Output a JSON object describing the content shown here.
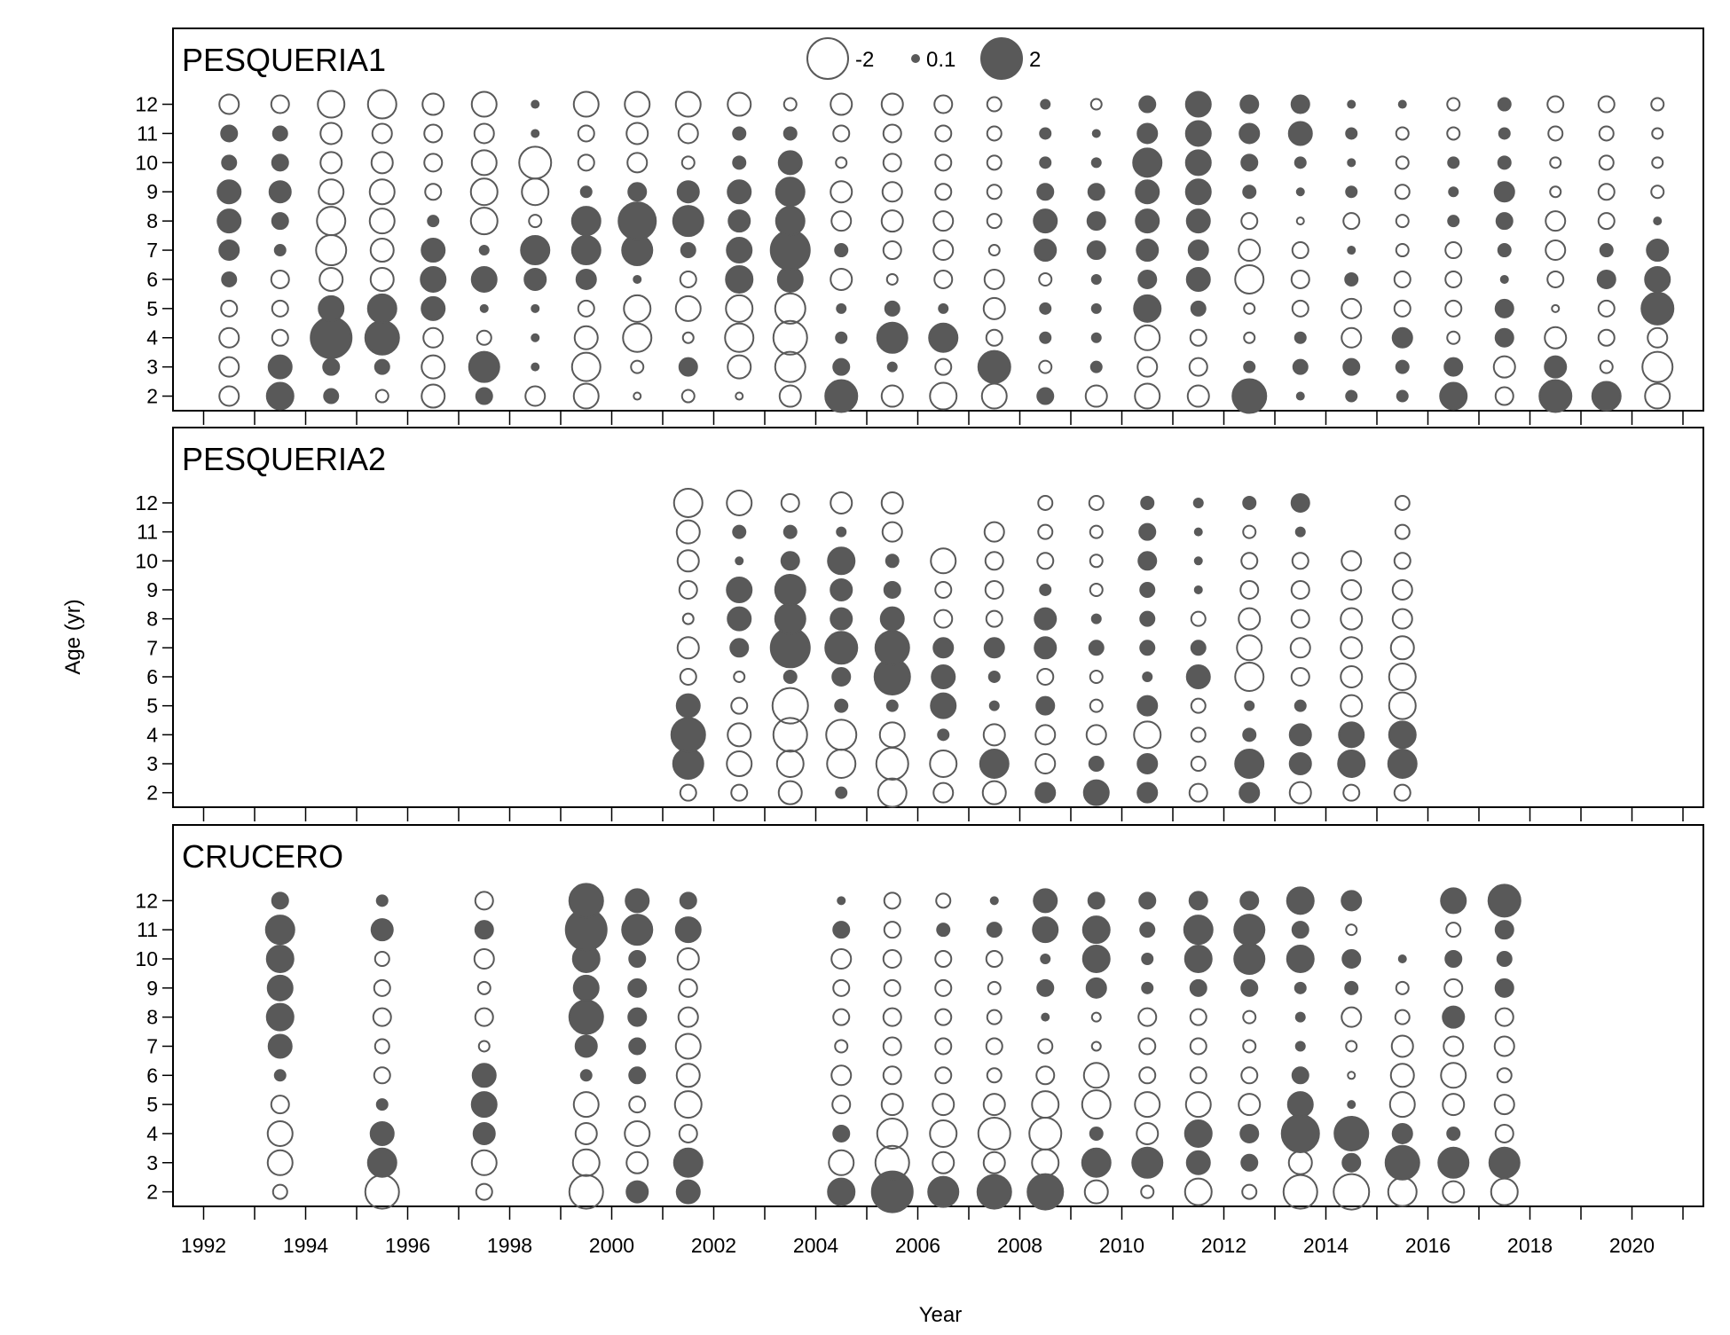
{
  "chart_data": {
    "type": "scatter",
    "subtype": "bubble",
    "xlabel": "Year",
    "ylabel": "Age (yr)",
    "x_ticks": [
      1992,
      1994,
      1996,
      1998,
      2000,
      2002,
      2004,
      2006,
      2008,
      2010,
      2012,
      2014,
      2016,
      2018,
      2020
    ],
    "xlim": [
      1991.4,
      2021.4
    ],
    "y_ticks": [
      2,
      3,
      4,
      5,
      6,
      7,
      8,
      9,
      10,
      11,
      12
    ],
    "ylim": [
      1.5,
      14.6
    ],
    "colors": {
      "positive": "#595959",
      "negative_stroke": "#595959",
      "frame": "#000000"
    },
    "legend": {
      "placement": "top-center",
      "entries": [
        {
          "label": "-2",
          "value": -2
        },
        {
          "label": "0.1",
          "value": 0.1
        },
        {
          "label": "2",
          "value": 2
        }
      ]
    },
    "panels": [
      {
        "name": "PESQUERIA1",
        "years": [
          1993,
          1994,
          1995,
          1996,
          1997,
          1998,
          1999,
          2000,
          2001,
          2002,
          2003,
          2004,
          2005,
          2006,
          2007,
          2008,
          2009,
          2010,
          2011,
          2012,
          2013,
          2014,
          2015,
          2016,
          2017,
          2018,
          2019,
          2020,
          2021
        ],
        "ages": [
          2,
          3,
          4,
          5,
          6,
          7,
          8,
          9,
          10,
          11,
          12
        ],
        "residuals": [
          [
            -0.8,
            -0.8,
            -0.8,
            -0.6,
            0.5,
            0.8,
            1.0,
            1.0,
            0.5,
            0.6,
            -0.8
          ],
          [
            1.2,
            1.0,
            -0.6,
            -0.6,
            -0.7,
            0.3,
            0.6,
            0.9,
            0.6,
            0.5,
            -0.7
          ],
          [
            0.5,
            0.6,
            2.0,
            1.1,
            -1.0,
            -1.4,
            -1.3,
            -1.1,
            -0.9,
            -0.9,
            -1.2
          ],
          [
            -0.4,
            0.5,
            1.6,
            1.3,
            -1.0,
            -1.0,
            -1.1,
            -1.1,
            -0.9,
            -0.8,
            -1.3
          ],
          [
            -1.0,
            -1.0,
            -0.8,
            1.0,
            1.1,
            1.0,
            0.3,
            -0.6,
            -0.7,
            -0.7,
            -0.9
          ],
          [
            0.6,
            1.4,
            -0.5,
            0.1,
            1.1,
            0.2,
            -1.2,
            -1.2,
            -1.1,
            -0.8,
            -1.1
          ],
          [
            -0.8,
            0.1,
            0.1,
            0.1,
            0.9,
            1.3,
            -0.4,
            -1.2,
            -1.5,
            0.1,
            0.1
          ],
          [
            -1.1,
            -1.3,
            -1.0,
            -0.6,
            0.8,
            1.3,
            1.3,
            0.3,
            -0.6,
            -0.6,
            -1.1
          ],
          [
            -0.1,
            -0.4,
            -1.3,
            -1.2,
            0.1,
            1.4,
            1.8,
            0.7,
            -0.8,
            -0.9,
            -1.1
          ],
          [
            -0.4,
            0.7,
            -0.3,
            -1.1,
            -0.6,
            0.5,
            1.4,
            0.9,
            -0.4,
            -0.8,
            -1.1
          ],
          [
            -0.1,
            -1.0,
            -1.3,
            -1.2,
            1.2,
            1.1,
            0.9,
            1.0,
            0.4,
            0.4,
            -1.0
          ],
          [
            -0.9,
            -1.4,
            -1.6,
            -1.4,
            1.1,
            1.9,
            1.3,
            1.3,
            1.0,
            0.4,
            -0.4
          ],
          [
            1.5,
            0.6,
            0.3,
            0.2,
            -0.9,
            0.4,
            -0.8,
            -0.9,
            -0.3,
            -0.6,
            -0.9
          ],
          [
            -0.9,
            0.2,
            1.4,
            0.5,
            -0.3,
            -0.7,
            -0.9,
            -0.8,
            -0.7,
            -0.7,
            -0.9
          ],
          [
            -1.2,
            -0.6,
            1.3,
            0.2,
            -0.7,
            -0.8,
            -0.8,
            -0.6,
            -0.6,
            -0.6,
            -0.7
          ],
          [
            -1.1,
            1.5,
            -0.6,
            -0.9,
            -0.8,
            -0.3,
            -0.5,
            -0.5,
            -0.5,
            -0.5,
            -0.5
          ],
          [
            0.6,
            -0.4,
            0.3,
            0.3,
            -0.4,
            0.9,
            1.0,
            0.6,
            0.3,
            0.3,
            0.2
          ],
          [
            -0.9,
            0.3,
            0.2,
            0.2,
            0.2,
            0.7,
            0.7,
            0.6,
            0.2,
            0.1,
            -0.3
          ],
          [
            -1.1,
            -0.8,
            -1.1,
            1.2,
            0.7,
            0.9,
            1.0,
            1.0,
            1.3,
            0.8,
            0.6
          ],
          [
            -0.9,
            -0.7,
            -0.6,
            0.5,
            1.0,
            0.8,
            1.0,
            1.1,
            1.1,
            1.1,
            1.1
          ],
          [
            1.6,
            0.3,
            -0.3,
            -0.3,
            -1.3,
            -0.9,
            -0.6,
            0.4,
            0.6,
            0.8,
            0.7
          ],
          [
            0.1,
            0.5,
            0.3,
            -0.6,
            -0.7,
            -0.6,
            -0.1,
            0.1,
            0.3,
            1.0,
            0.7
          ],
          [
            0.3,
            0.6,
            -0.8,
            -0.8,
            0.4,
            0.1,
            -0.6,
            0.3,
            0.1,
            0.3,
            0.1
          ],
          [
            0.3,
            0.4,
            0.8,
            -0.6,
            -0.6,
            -0.4,
            -0.4,
            -0.5,
            -0.4,
            -0.4,
            0.1
          ],
          [
            1.2,
            0.7,
            -0.4,
            -0.6,
            -0.6,
            -0.6,
            0.3,
            0.2,
            0.3,
            -0.4,
            -0.4
          ],
          [
            -0.7,
            -0.9,
            0.7,
            0.7,
            0.1,
            0.4,
            0.6,
            0.8,
            0.4,
            0.3,
            0.4
          ],
          [
            1.5,
            0.9,
            -0.9,
            -0.1,
            -0.6,
            -0.8,
            -0.8,
            -0.3,
            -0.3,
            -0.5,
            -0.6
          ],
          [
            1.3,
            -0.4,
            -0.6,
            -0.6,
            0.7,
            0.4,
            -0.6,
            -0.6,
            -0.5,
            -0.5,
            -0.6
          ],
          [
            -1.1,
            -1.4,
            -0.8,
            1.5,
            1.1,
            0.9,
            0.1,
            -0.4,
            -0.3,
            -0.3,
            -0.4
          ]
        ]
      },
      {
        "name": "PESQUERIA2",
        "years": [
          2002,
          2003,
          2004,
          2005,
          2006,
          2007,
          2008,
          2009,
          2010,
          2011,
          2012,
          2013,
          2014,
          2015,
          2016
        ],
        "ages": [
          2,
          3,
          4,
          5,
          6,
          7,
          8,
          9,
          10,
          11,
          12
        ],
        "residuals": [
          [
            -0.6,
            1.4,
            1.6,
            1.0,
            -0.6,
            -0.9,
            -0.3,
            -0.7,
            -0.9,
            -1.0,
            -1.3
          ],
          [
            -0.6,
            -1.1,
            -1.0,
            -0.6,
            -0.3,
            0.7,
            1.0,
            1.1,
            0.1,
            0.4,
            -1.1
          ],
          [
            -1.0,
            -1.2,
            -1.6,
            -1.7,
            0.4,
            1.9,
            1.4,
            1.4,
            0.7,
            0.4,
            -0.7
          ],
          [
            0.3,
            -1.3,
            -1.4,
            0.4,
            0.7,
            1.5,
            0.9,
            0.9,
            1.2,
            0.2,
            -0.9
          ],
          [
            -1.3,
            -1.5,
            -1.1,
            0.3,
            1.7,
            1.6,
            1.0,
            0.6,
            0.4,
            -0.8,
            -0.9
          ],
          [
            -0.8,
            -1.2,
            0.3,
            1.1,
            1.0,
            0.8,
            -0.7,
            -0.6,
            -1.1,
            null,
            null
          ],
          [
            -1.0,
            1.3,
            -0.9,
            0.2,
            0.3,
            0.8,
            -0.6,
            -0.7,
            -0.7,
            -0.8,
            null
          ],
          [
            0.8,
            -0.8,
            -0.8,
            0.7,
            -0.6,
            0.9,
            0.9,
            0.3,
            -0.6,
            -0.5,
            -0.5
          ],
          [
            1.1,
            0.5,
            -0.8,
            -0.4,
            -0.4,
            0.5,
            0.2,
            -0.4,
            -0.4,
            -0.4,
            -0.5
          ],
          [
            0.8,
            0.8,
            -1.2,
            0.8,
            0.2,
            0.5,
            0.5,
            0.5,
            0.7,
            0.6,
            0.4
          ],
          [
            -0.7,
            -0.5,
            -0.5,
            -0.5,
            1.0,
            0.5,
            -0.5,
            0.1,
            0.1,
            0.1,
            0.2
          ],
          [
            0.8,
            1.3,
            0.4,
            0.2,
            -1.3,
            -1.1,
            -0.9,
            -0.7,
            -0.6,
            -0.4,
            0.4
          ],
          [
            -0.9,
            0.9,
            0.9,
            0.3,
            -0.7,
            -0.8,
            -0.7,
            -0.7,
            -0.6,
            0.2,
            0.7
          ],
          [
            -0.6,
            1.2,
            1.1,
            -0.9,
            -0.9,
            -0.9,
            -0.9,
            -0.8,
            -0.8,
            null,
            null
          ],
          [
            -0.6,
            1.3,
            1.2,
            -1.2,
            -1.2,
            -1.0,
            -0.8,
            -0.8,
            -0.6,
            -0.5,
            -0.5
          ]
        ]
      },
      {
        "name": "CRUCERO",
        "years": [
          1994,
          1996,
          1998,
          2000,
          2001,
          2002,
          2005,
          2006,
          2007,
          2008,
          2009,
          2010,
          2011,
          2012,
          2013,
          2014,
          2015,
          2016,
          2017,
          2018
        ],
        "ages": [
          2,
          3,
          4,
          5,
          6,
          7,
          8,
          9,
          10,
          11,
          12
        ],
        "residuals": [
          [
            -0.5,
            -1.1,
            -1.1,
            -0.7,
            0.3,
            1.0,
            1.2,
            1.1,
            1.2,
            1.3,
            0.6
          ],
          [
            -1.6,
            1.3,
            1.0,
            0.3,
            -0.6,
            -0.5,
            -0.7,
            -0.6,
            -0.5,
            0.9,
            0.3
          ],
          [
            -0.6,
            -1.1,
            0.9,
            1.1,
            1.0,
            -0.3,
            -0.7,
            -0.4,
            -0.8,
            0.7,
            -0.7
          ],
          [
            -1.6,
            -1.2,
            -0.9,
            -1.1,
            0.3,
            0.9,
            1.6,
            1.1,
            1.2,
            2.0,
            1.6
          ],
          [
            0.9,
            -0.9,
            -1.1,
            -0.6,
            0.6,
            0.6,
            0.7,
            0.7,
            0.6,
            1.4,
            1.0
          ],
          [
            1.0,
            1.3,
            -0.7,
            -1.2,
            -1.0,
            -1.1,
            -0.8,
            -0.7,
            -0.9,
            1.1,
            0.6
          ],
          [
            1.2,
            -1.1,
            0.6,
            -0.7,
            -0.8,
            -0.4,
            -0.6,
            -0.6,
            -0.8,
            0.6,
            0.1
          ],
          [
            2.0,
            -1.6,
            -1.4,
            -0.9,
            -0.7,
            -0.7,
            -0.7,
            -0.6,
            -0.7,
            -0.6,
            -0.6
          ],
          [
            1.4,
            -0.9,
            -1.2,
            -0.9,
            -0.6,
            -0.6,
            -0.6,
            -0.6,
            -0.6,
            0.4,
            -0.5
          ],
          [
            1.6,
            -0.9,
            -1.5,
            -0.9,
            -0.5,
            -0.6,
            -0.5,
            -0.4,
            -0.6,
            0.5,
            0.1
          ],
          [
            1.7,
            -1.2,
            -1.5,
            -1.2,
            -0.7,
            -0.5,
            0.1,
            0.6,
            0.2,
            1.1,
            1.0
          ],
          [
            -1.0,
            1.3,
            0.4,
            -1.3,
            -1.1,
            -0.2,
            -0.2,
            0.8,
            1.2,
            1.2,
            0.6
          ],
          [
            -0.4,
            1.4,
            -0.9,
            -1.1,
            -0.6,
            -0.6,
            -0.7,
            0.3,
            0.3,
            0.5,
            0.6
          ],
          [
            -1.2,
            1.0,
            1.2,
            -1.1,
            -0.6,
            -0.6,
            -0.6,
            0.6,
            1.2,
            1.3,
            0.7
          ],
          [
            -0.5,
            0.6,
            0.7,
            -0.9,
            -0.6,
            -0.4,
            -0.4,
            0.6,
            1.4,
            1.4,
            0.7
          ],
          [
            -1.6,
            -1.0,
            1.8,
            1.1,
            0.6,
            0.2,
            0.2,
            0.3,
            1.2,
            0.6,
            1.2
          ],
          [
            -1.7,
            0.7,
            1.6,
            0.1,
            -0.1,
            -0.3,
            -0.8,
            0.4,
            0.7,
            -0.3,
            0.8
          ],
          [
            -1.3,
            1.6,
            0.8,
            -1.1,
            -1.0,
            -0.9,
            -0.5,
            -0.4,
            0.1,
            null,
            null
          ],
          [
            -0.9,
            1.4,
            0.4,
            -0.9,
            -1.1,
            -0.8,
            0.9,
            -0.7,
            0.6,
            -0.5,
            1.1
          ],
          [
            -1.2,
            1.4,
            -0.7,
            -0.8,
            -0.5,
            -0.8,
            -0.7,
            0.7,
            0.5,
            0.7,
            1.5
          ]
        ]
      }
    ]
  }
}
